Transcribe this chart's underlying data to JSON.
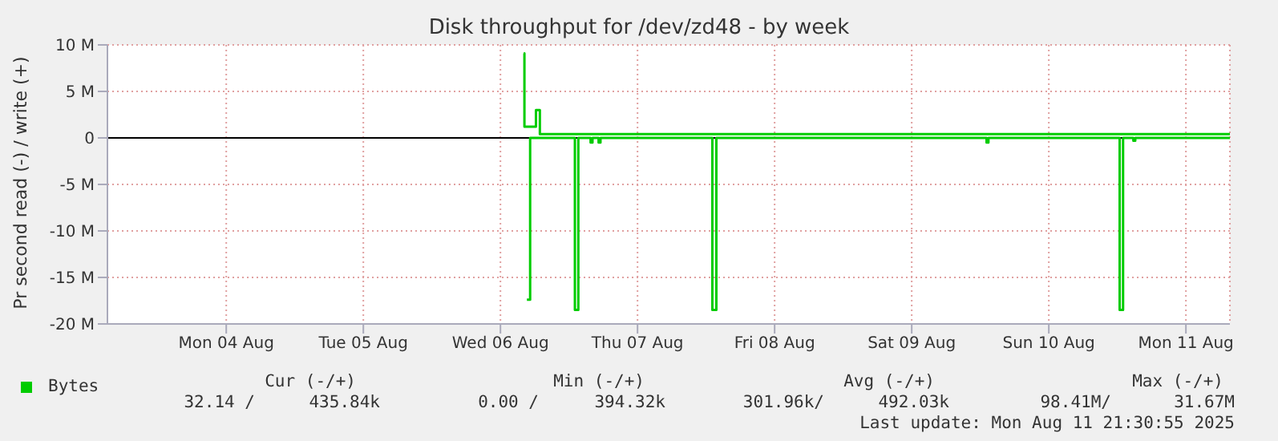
{
  "chart_data": {
    "type": "step",
    "title": "Disk throughput for /dev/zd48 - by week",
    "ylabel": "Pr second read (-) / write (+)",
    "series": [
      {
        "name": "Bytes",
        "color": "#00cc00",
        "x": [
          "2025-08-06T16:05",
          "2025-08-06T16:12",
          "2025-08-06T18:13",
          "2025-08-06T18:54",
          "2025-08-11T19:42"
        ],
        "values": [
          9.1,
          1.2,
          3.0,
          0.4,
          0.4
        ]
      },
      {
        "color": "#00cc00",
        "x": [
          "2025-08-06T16:38",
          "2025-08-06T17:12",
          "2025-08-07T01:02",
          "2025-08-07T01:38",
          "2025-08-07T03:47",
          "2025-08-07T04:07",
          "2025-08-07T05:11",
          "2025-08-07T05:31",
          "2025-08-08T01:06",
          "2025-08-08T01:48",
          "2025-08-10T01:06",
          "2025-08-10T01:26",
          "2025-08-11T00:24",
          "2025-08-11T01:00",
          "2025-08-11T02:48",
          "2025-08-11T03:08",
          "2025-08-11T19:42"
        ],
        "values": [
          -17.4,
          0,
          -18.5,
          0,
          -0.5,
          0,
          -0.5,
          0,
          -18.5,
          0,
          -0.5,
          0,
          -18.5,
          0,
          -0.3,
          0,
          0
        ]
      }
    ],
    "xlim": [
      "2025-08-03T15:12",
      "2025-08-11T19:42"
    ],
    "xticks": [
      {
        "value": "2025-08-04T12:00",
        "label": "Mon 04 Aug"
      },
      {
        "value": "2025-08-05T12:00",
        "label": "Tue 05 Aug"
      },
      {
        "value": "2025-08-06T12:00",
        "label": "Wed 06 Aug"
      },
      {
        "value": "2025-08-07T12:00",
        "label": "Thu 07 Aug"
      },
      {
        "value": "2025-08-08T12:00",
        "label": "Fri 08 Aug"
      },
      {
        "value": "2025-08-09T12:00",
        "label": "Sat 09 Aug"
      },
      {
        "value": "2025-08-10T12:00",
        "label": "Sun 10 Aug"
      },
      {
        "value": "2025-08-11T12:00",
        "label": "Mon 11 Aug"
      }
    ],
    "ylim": [
      -20,
      10
    ],
    "yticks": [
      {
        "value": -20,
        "label": "-20 M"
      },
      {
        "value": -15,
        "label": "-15 M"
      },
      {
        "value": -10,
        "label": "-10 M"
      },
      {
        "value": -5,
        "label": "-5 M"
      },
      0,
      {
        "value": 5,
        "label": "5 M"
      },
      {
        "value": 10,
        "label": "10 M"
      }
    ],
    "ref_lines": [
      {
        "axis": "y",
        "value": 0,
        "color": "#000000"
      }
    ],
    "grid": true,
    "legend": "bottom left",
    "annotations": [
      "Cur (-/+)",
      "Min (-/+)",
      "Avg (-/+)",
      "Max (-/+)",
      "32.14 /",
      "435.84k",
      "0.00 /",
      "394.32k",
      "301.96k/",
      "492.03k",
      "98.41M/",
      "31.67M",
      "Last update: Mon Aug 11 21:30:55 2025"
    ]
  }
}
